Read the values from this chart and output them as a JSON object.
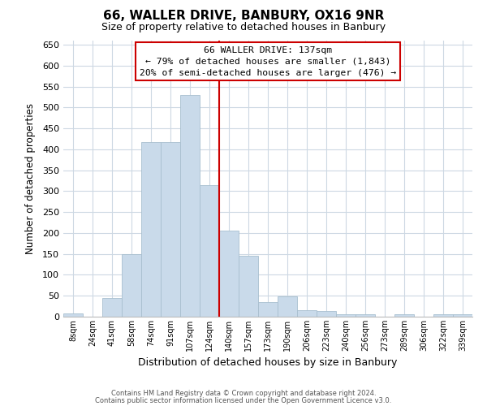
{
  "title": "66, WALLER DRIVE, BANBURY, OX16 9NR",
  "subtitle": "Size of property relative to detached houses in Banbury",
  "xlabel": "Distribution of detached houses by size in Banbury",
  "ylabel": "Number of detached properties",
  "bar_labels": [
    "8sqm",
    "24sqm",
    "41sqm",
    "58sqm",
    "74sqm",
    "91sqm",
    "107sqm",
    "124sqm",
    "140sqm",
    "157sqm",
    "173sqm",
    "190sqm",
    "206sqm",
    "223sqm",
    "240sqm",
    "256sqm",
    "273sqm",
    "289sqm",
    "306sqm",
    "322sqm",
    "339sqm"
  ],
  "bar_values": [
    8,
    0,
    45,
    150,
    417,
    417,
    530,
    315,
    205,
    145,
    35,
    48,
    15,
    13,
    5,
    5,
    0,
    5,
    0,
    5,
    5
  ],
  "bar_color": "#c9daea",
  "bar_edge_color": "#a8bfcf",
  "vline_x_idx": 8,
  "vline_color": "#cc0000",
  "ylim": [
    0,
    660
  ],
  "yticks": [
    0,
    50,
    100,
    150,
    200,
    250,
    300,
    350,
    400,
    450,
    500,
    550,
    600,
    650
  ],
  "annotation_title": "66 WALLER DRIVE: 137sqm",
  "annotation_line1": "← 79% of detached houses are smaller (1,843)",
  "annotation_line2": "20% of semi-detached houses are larger (476) →",
  "annotation_box_color": "#ffffff",
  "annotation_box_edge": "#cc0000",
  "footer1": "Contains HM Land Registry data © Crown copyright and database right 2024.",
  "footer2": "Contains public sector information licensed under the Open Government Licence v3.0.",
  "bg_color": "#ffffff",
  "grid_color": "#cdd8e3"
}
